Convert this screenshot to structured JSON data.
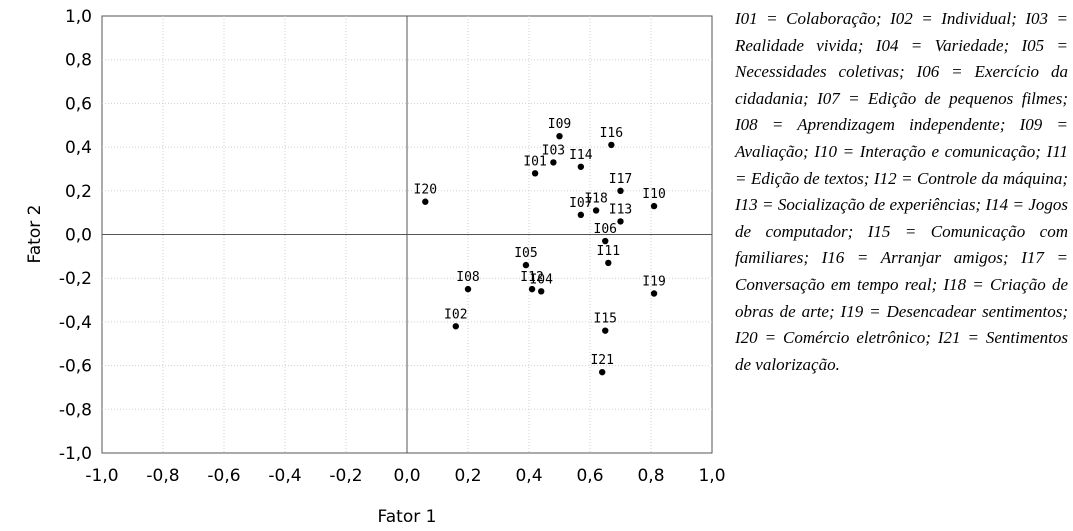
{
  "chart_data": {
    "type": "scatter",
    "title": "",
    "xlabel": "Fator 1",
    "ylabel": "Fator 2",
    "xlim": [
      -1.0,
      1.0
    ],
    "ylim": [
      -1.0,
      1.0
    ],
    "x_ticks": [
      "-1,0",
      "-0,8",
      "-0,6",
      "-0,4",
      "-0,2",
      "0,0",
      "0,2",
      "0,4",
      "0,6",
      "0,8",
      "1,0"
    ],
    "y_ticks": [
      "1,0",
      "0,8",
      "0,6",
      "0,4",
      "0,2",
      "0,0",
      "-0,2",
      "-0,4",
      "-0,6",
      "-0,8",
      "-1,0"
    ],
    "grid": true,
    "points": [
      {
        "label": "I01",
        "x": 0.42,
        "y": 0.28
      },
      {
        "label": "I02",
        "x": 0.16,
        "y": -0.42
      },
      {
        "label": "I03",
        "x": 0.48,
        "y": 0.33
      },
      {
        "label": "I04",
        "x": 0.44,
        "y": -0.26
      },
      {
        "label": "I05",
        "x": 0.39,
        "y": -0.14
      },
      {
        "label": "I06",
        "x": 0.65,
        "y": -0.03
      },
      {
        "label": "I07",
        "x": 0.57,
        "y": 0.09
      },
      {
        "label": "I08",
        "x": 0.2,
        "y": -0.25
      },
      {
        "label": "I09",
        "x": 0.5,
        "y": 0.45
      },
      {
        "label": "I10",
        "x": 0.81,
        "y": 0.13
      },
      {
        "label": "I11",
        "x": 0.66,
        "y": -0.13
      },
      {
        "label": "I12",
        "x": 0.41,
        "y": -0.25
      },
      {
        "label": "I13",
        "x": 0.7,
        "y": 0.06
      },
      {
        "label": "I14",
        "x": 0.57,
        "y": 0.31
      },
      {
        "label": "I15",
        "x": 0.65,
        "y": -0.44
      },
      {
        "label": "I16",
        "x": 0.67,
        "y": 0.41
      },
      {
        "label": "I17",
        "x": 0.7,
        "y": 0.2
      },
      {
        "label": "I18",
        "x": 0.62,
        "y": 0.11
      },
      {
        "label": "I19",
        "x": 0.81,
        "y": -0.27
      },
      {
        "label": "I20",
        "x": 0.06,
        "y": 0.15
      },
      {
        "label": "I21",
        "x": 0.64,
        "y": -0.63
      }
    ]
  },
  "legend_text": "I01 = Colaboração; I02 = Individual; I03 = Realidade vivida; I04 = Variedade; I05 = Necessidades coletivas; I06 = Exercício da cidadania; I07 = Edição de pequenos filmes; I08 = Aprendizagem independente; I09 = Avaliação; I10 = Interação e comunicação; I11 = Edição de textos; I12 = Controle da máquina; I13 = Socialização de experiências; I14 = Jogos de computador; I15 = Comunicação com familiares; I16 = Arranjar amigos; I17 = Conversação em tempo real; I18 = Criação de obras de arte; I19 = Desencadear sentimentos; I20 = Comércio eletrônico; I21 = Sentimentos de valorização."
}
